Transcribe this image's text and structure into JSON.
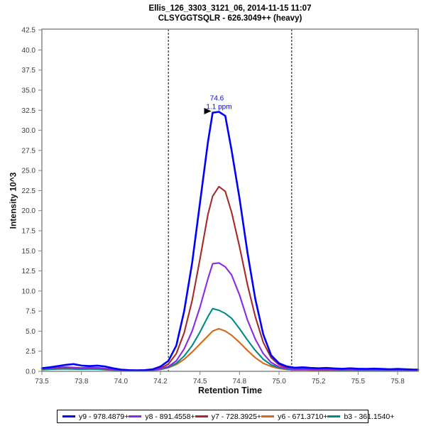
{
  "header": {
    "title_line1": "Ellis_126_3303_3121_06, 2014-11-15 11:07",
    "title_line2": "CLSYGGTSQLR - 626.3049++ (heavy)"
  },
  "chart_data": {
    "type": "line",
    "title": "Ellis_126_3303_3121_06, 2014-11-15 11:07",
    "subtitle": "CLSYGGTSQLR - 626.3049++ (heavy)",
    "xlabel": "Retention Time",
    "ylabel": "Intensity 10^3",
    "xlim": [
      73.5,
      75.88
    ],
    "ylim": [
      0,
      42.6
    ],
    "grid": false,
    "legend_position": "bottom",
    "xticks": [
      {
        "v": 73.5,
        "label": "73.5"
      },
      {
        "v": 73.75,
        "label": "73.8"
      },
      {
        "v": 74.0,
        "label": "74.0"
      },
      {
        "v": 74.25,
        "label": "74.2"
      },
      {
        "v": 74.5,
        "label": "74.5"
      },
      {
        "v": 74.75,
        "label": "74.8"
      },
      {
        "v": 75.0,
        "label": "75.0"
      },
      {
        "v": 75.25,
        "label": "75.2"
      },
      {
        "v": 75.5,
        "label": "75.5"
      },
      {
        "v": 75.75,
        "label": "75.8"
      }
    ],
    "yticks": [
      {
        "v": 0.0,
        "label": "0.0"
      },
      {
        "v": 2.5,
        "label": "2.5"
      },
      {
        "v": 5.0,
        "label": "5.0"
      },
      {
        "v": 7.5,
        "label": "7.5"
      },
      {
        "v": 10.0,
        "label": "10.0"
      },
      {
        "v": 12.5,
        "label": "12.5"
      },
      {
        "v": 15.0,
        "label": "15.0"
      },
      {
        "v": 17.5,
        "label": "17.5"
      },
      {
        "v": 20.0,
        "label": "20.0"
      },
      {
        "v": 22.5,
        "label": "22.5"
      },
      {
        "v": 25.0,
        "label": "25.0"
      },
      {
        "v": 27.5,
        "label": "27.5"
      },
      {
        "v": 30.0,
        "label": "30.0"
      },
      {
        "v": 32.5,
        "label": "32.5"
      },
      {
        "v": 35.0,
        "label": "35.0"
      },
      {
        "v": 37.5,
        "label": "37.5"
      },
      {
        "v": 40.0,
        "label": "40.0"
      },
      {
        "v": 42.5,
        "label": "42.5"
      }
    ],
    "peak_boundaries": [
      74.3,
      75.08
    ],
    "annotation": {
      "rt_label": "74.6",
      "ppm_label": "1.1 ppm",
      "x": 74.58,
      "y": 32.3
    },
    "x": [
      73.5,
      73.55,
      73.6,
      73.65,
      73.7,
      73.75,
      73.8,
      73.85,
      73.9,
      73.95,
      74.0,
      74.05,
      74.1,
      74.15,
      74.2,
      74.25,
      74.3,
      74.35,
      74.4,
      74.45,
      74.5,
      74.55,
      74.58,
      74.62,
      74.66,
      74.7,
      74.75,
      74.8,
      74.85,
      74.9,
      74.95,
      75.0,
      75.05,
      75.1,
      75.15,
      75.2,
      75.25,
      75.3,
      75.35,
      75.4,
      75.45,
      75.5,
      75.55,
      75.6,
      75.65,
      75.7,
      75.75,
      75.8,
      75.85,
      75.88
    ],
    "series": [
      {
        "name": "y9",
        "label": "y9 - 978.4879+",
        "color": "#0000FF",
        "values": [
          0.4,
          0.5,
          0.65,
          0.8,
          0.9,
          0.72,
          0.65,
          0.72,
          0.6,
          0.38,
          0.22,
          0.15,
          0.12,
          0.15,
          0.25,
          0.6,
          1.3,
          3.2,
          7.5,
          13.5,
          21.0,
          28.5,
          32.2,
          32.3,
          31.8,
          27.5,
          21.5,
          14.8,
          9.0,
          4.6,
          2.0,
          1.0,
          0.6,
          0.45,
          0.5,
          0.42,
          0.38,
          0.42,
          0.36,
          0.32,
          0.38,
          0.32,
          0.3,
          0.34,
          0.3,
          0.26,
          0.3,
          0.26,
          0.22,
          0.22
        ]
      },
      {
        "name": "y8",
        "label": "y8 - 891.4558+",
        "color": "#8A2BE2",
        "values": [
          0.35,
          0.42,
          0.5,
          0.52,
          0.48,
          0.42,
          0.48,
          0.45,
          0.35,
          0.25,
          0.15,
          0.1,
          0.08,
          0.1,
          0.15,
          0.3,
          0.6,
          1.3,
          2.8,
          5.0,
          8.0,
          11.5,
          13.4,
          13.5,
          13.0,
          12.0,
          9.5,
          6.4,
          4.0,
          2.2,
          1.1,
          0.55,
          0.35,
          0.25,
          0.28,
          0.24,
          0.22,
          0.24,
          0.2,
          0.18,
          0.22,
          0.18,
          0.17,
          0.19,
          0.17,
          0.15,
          0.17,
          0.15,
          0.13,
          0.13
        ]
      },
      {
        "name": "y7",
        "label": "y7 - 728.3925+",
        "color": "#A52A2A",
        "values": [
          0.3,
          0.38,
          0.45,
          0.5,
          0.45,
          0.4,
          0.45,
          0.42,
          0.32,
          0.22,
          0.15,
          0.1,
          0.08,
          0.1,
          0.18,
          0.4,
          0.9,
          2.2,
          4.8,
          8.8,
          14.0,
          19.5,
          21.8,
          23.0,
          22.4,
          19.8,
          15.5,
          10.8,
          6.8,
          3.6,
          1.7,
          0.8,
          0.45,
          0.3,
          0.32,
          0.28,
          0.25,
          0.28,
          0.24,
          0.21,
          0.25,
          0.21,
          0.19,
          0.22,
          0.19,
          0.17,
          0.19,
          0.17,
          0.15,
          0.15
        ]
      },
      {
        "name": "y6",
        "label": "y6 - 671.3710+",
        "color": "#D2691E",
        "values": [
          0.25,
          0.3,
          0.35,
          0.38,
          0.35,
          0.3,
          0.34,
          0.32,
          0.25,
          0.18,
          0.12,
          0.08,
          0.06,
          0.08,
          0.12,
          0.22,
          0.45,
          0.85,
          1.5,
          2.4,
          3.4,
          4.4,
          5.0,
          5.3,
          5.0,
          4.5,
          3.6,
          2.6,
          1.7,
          1.0,
          0.6,
          0.35,
          0.22,
          0.16,
          0.18,
          0.15,
          0.14,
          0.15,
          0.13,
          0.12,
          0.14,
          0.12,
          0.11,
          0.12,
          0.11,
          0.1,
          0.11,
          0.1,
          0.09,
          0.09
        ]
      },
      {
        "name": "b3",
        "label": "b3 - 361.1540+",
        "color": "#008B8B",
        "values": [
          0.2,
          0.25,
          0.28,
          0.3,
          0.28,
          0.25,
          0.28,
          0.26,
          0.2,
          0.15,
          0.1,
          0.08,
          0.06,
          0.08,
          0.12,
          0.25,
          0.5,
          1.0,
          1.9,
          3.2,
          4.9,
          6.8,
          7.8,
          7.6,
          7.2,
          6.6,
          5.3,
          3.9,
          2.6,
          1.5,
          0.8,
          0.45,
          0.28,
          0.2,
          0.22,
          0.19,
          0.17,
          0.19,
          0.16,
          0.14,
          0.17,
          0.14,
          0.13,
          0.14,
          0.13,
          0.11,
          0.13,
          0.11,
          0.1,
          0.1
        ]
      }
    ]
  }
}
